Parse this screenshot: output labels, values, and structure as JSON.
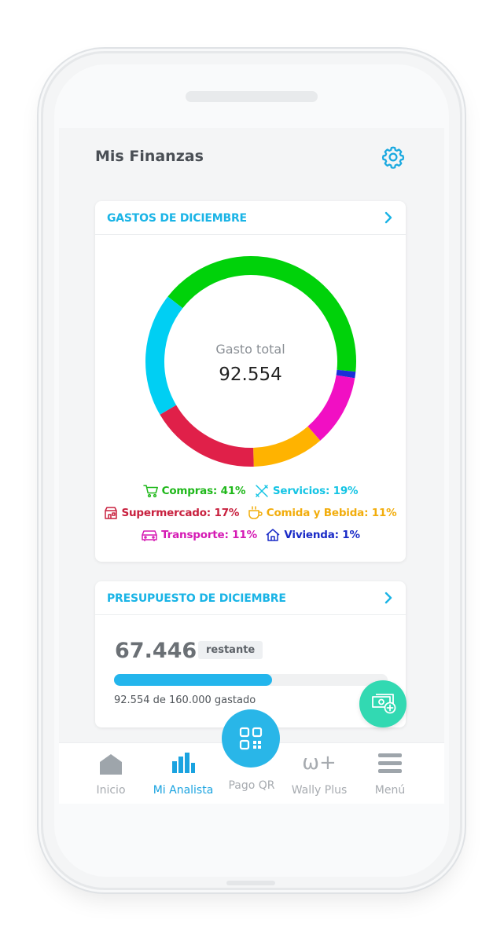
{
  "header": {
    "title": "Mis Finanzas",
    "settings_icon": "gear-icon"
  },
  "expenses_card": {
    "title": "GASTOS DE DICIEMBRE",
    "total_label": "Gasto total",
    "total_value": "92.554",
    "segments": [
      {
        "name": "Compras",
        "percent": 41,
        "color": "#00d20a"
      },
      {
        "name": "Vivienda",
        "percent": 1,
        "color": "#1a2fd8"
      },
      {
        "name": "Transporte",
        "percent": 11,
        "color": "#f10fc3"
      },
      {
        "name": "Comida y Bebida",
        "percent": 11,
        "color": "#ffb300"
      },
      {
        "name": "Supermercado",
        "percent": 17,
        "color": "#e02049"
      },
      {
        "name": "Servicios",
        "percent": 19,
        "color": "#00cff3"
      }
    ],
    "legend": [
      [
        {
          "text": "Compras: 41%",
          "icon": "cart-icon",
          "color": "#1fb81a"
        },
        {
          "text": "Servicios: 19%",
          "icon": "tools-icon",
          "color": "#14c4e4"
        }
      ],
      [
        {
          "text": "Supermercado: 17%",
          "icon": "store-icon",
          "color": "#c8203e"
        },
        {
          "text": "Comida y Bebida: 11%",
          "icon": "cup-icon",
          "color": "#f2ad0c"
        }
      ],
      [
        {
          "text": "Transporte: 11%",
          "icon": "car-icon",
          "color": "#d51ab4"
        },
        {
          "text": "Vivienda: 1%",
          "icon": "house-icon",
          "color": "#1a2bc7"
        }
      ]
    ]
  },
  "budget_card": {
    "title": "PRESUPUESTO DE DICIEMBRE",
    "remaining_value": "67.446",
    "remaining_label": "restante",
    "spent_fraction": 0.578,
    "caption": "92.554 de 160.000 gastado"
  },
  "nav": {
    "items": [
      {
        "label": "Inicio",
        "icon": "home-icon"
      },
      {
        "label": "Mi Analista",
        "icon": "bar-chart-icon",
        "active": true
      },
      {
        "label": "Pago QR",
        "icon": "qr-code-icon"
      },
      {
        "label": "Wally Plus",
        "icon": "wally-plus-icon",
        "glyph": "ω+"
      },
      {
        "label": "Menú",
        "icon": "menu-icon"
      }
    ]
  },
  "colors": {
    "accent": "#1ab4e6",
    "fab_money": "#32d9b2",
    "progress": "#23b5ec"
  }
}
